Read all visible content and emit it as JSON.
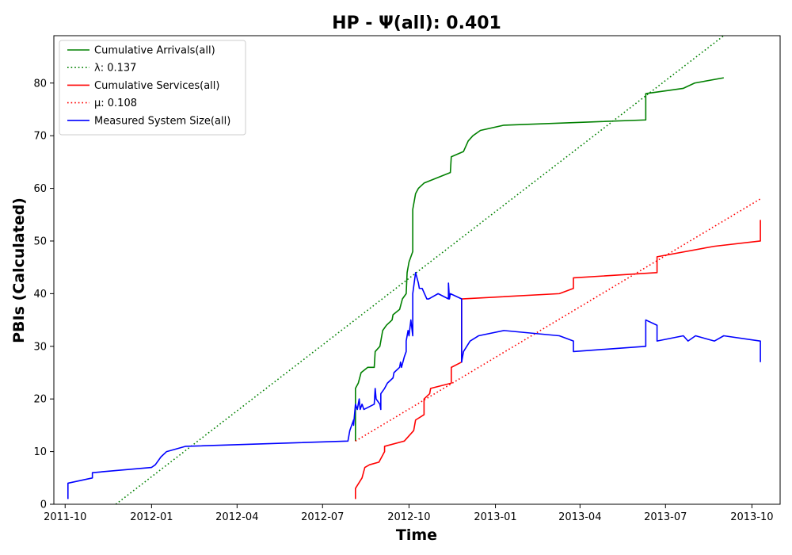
{
  "chart_data": {
    "type": "line",
    "title": "HP -  Ψ(all): 0.401",
    "xlabel": "Time",
    "ylabel": "PBIs (Calculated)",
    "xlim": [
      "2011-09-19",
      "2013-10-31"
    ],
    "ylim": [
      0,
      89
    ],
    "xticks": [
      "2011-10",
      "2012-01",
      "2012-04",
      "2012-07",
      "2012-10",
      "2013-01",
      "2013-04",
      "2013-07",
      "2013-10"
    ],
    "yticks": [
      0,
      10,
      20,
      30,
      40,
      50,
      60,
      70,
      80
    ],
    "grid": false,
    "legend_position": "top-left",
    "series": [
      {
        "name": "Cumulative Arrivals(all)",
        "color": "#008000",
        "style": "solid",
        "points": [
          [
            "2012-08-05",
            12
          ],
          [
            "2012-08-05",
            22
          ],
          [
            "2012-08-08",
            23
          ],
          [
            "2012-08-11",
            25
          ],
          [
            "2012-08-18",
            26
          ],
          [
            "2012-08-25",
            26
          ],
          [
            "2012-08-26",
            29
          ],
          [
            "2012-08-31",
            30
          ],
          [
            "2012-09-03",
            33
          ],
          [
            "2012-09-07",
            34
          ],
          [
            "2012-09-13",
            35
          ],
          [
            "2012-09-14",
            36
          ],
          [
            "2012-09-21",
            37
          ],
          [
            "2012-09-24",
            39
          ],
          [
            "2012-09-28",
            40
          ],
          [
            "2012-09-29",
            44
          ],
          [
            "2012-10-01",
            46
          ],
          [
            "2012-10-03",
            47
          ],
          [
            "2012-10-05",
            48
          ],
          [
            "2012-10-05",
            56
          ],
          [
            "2012-10-08",
            59
          ],
          [
            "2012-10-11",
            60
          ],
          [
            "2012-10-17",
            61
          ],
          [
            "2012-11-14",
            63
          ],
          [
            "2012-11-15",
            66
          ],
          [
            "2012-11-28",
            67
          ],
          [
            "2012-12-03",
            69
          ],
          [
            "2012-12-08",
            70
          ],
          [
            "2012-12-16",
            71
          ],
          [
            "2013-01-10",
            72
          ],
          [
            "2013-06-10",
            73
          ],
          [
            "2013-06-10",
            78
          ],
          [
            "2013-07-20",
            79
          ],
          [
            "2013-08-01",
            80
          ],
          [
            "2013-09-01",
            81
          ]
        ]
      },
      {
        "name": "λ: 0.137",
        "color": "#008000",
        "style": "dotted",
        "points": [
          [
            "2011-11-24",
            0
          ],
          [
            "2013-09-01",
            89
          ]
        ]
      },
      {
        "name": "Cumulative Services(all)",
        "color": "#ff0000",
        "style": "solid",
        "points": [
          [
            "2012-08-05",
            1
          ],
          [
            "2012-08-05",
            3
          ],
          [
            "2012-08-12",
            5
          ],
          [
            "2012-08-15",
            7
          ],
          [
            "2012-08-20",
            7.5
          ],
          [
            "2012-08-30",
            8
          ],
          [
            "2012-09-05",
            10
          ],
          [
            "2012-09-05",
            11
          ],
          [
            "2012-09-26",
            12
          ],
          [
            "2012-10-01",
            13
          ],
          [
            "2012-10-06",
            14
          ],
          [
            "2012-10-08",
            16
          ],
          [
            "2012-10-17",
            17
          ],
          [
            "2012-10-17",
            20
          ],
          [
            "2012-10-23",
            21
          ],
          [
            "2012-10-24",
            22
          ],
          [
            "2012-11-15",
            23
          ],
          [
            "2012-11-15",
            26
          ],
          [
            "2012-11-26",
            27
          ],
          [
            "2012-11-26",
            36
          ],
          [
            "2012-11-26",
            39
          ],
          [
            "2013-03-10",
            40
          ],
          [
            "2013-03-25",
            41
          ],
          [
            "2013-03-25",
            43
          ],
          [
            "2013-06-22",
            44
          ],
          [
            "2013-06-22",
            47
          ],
          [
            "2013-08-22",
            49
          ],
          [
            "2013-10-10",
            50
          ],
          [
            "2013-10-10",
            54
          ]
        ]
      },
      {
        "name": "μ: 0.108",
        "color": "#ff0000",
        "style": "dotted",
        "points": [
          [
            "2012-08-05",
            12
          ],
          [
            "2013-10-10",
            58
          ]
        ]
      },
      {
        "name": "Measured System Size(all)",
        "color": "#0000ff",
        "style": "solid",
        "points": [
          [
            "2011-10-04",
            1
          ],
          [
            "2011-10-04",
            4
          ],
          [
            "2011-10-30",
            5
          ],
          [
            "2011-10-30",
            6
          ],
          [
            "2012-01-01",
            7
          ],
          [
            "2012-01-05",
            7.5
          ],
          [
            "2012-01-11",
            9
          ],
          [
            "2012-01-17",
            10
          ],
          [
            "2012-02-06",
            11
          ],
          [
            "2012-07-28",
            12
          ],
          [
            "2012-07-30",
            14
          ],
          [
            "2012-08-01",
            15
          ],
          [
            "2012-08-03",
            16
          ],
          [
            "2012-08-03",
            15
          ],
          [
            "2012-08-05",
            19
          ],
          [
            "2012-08-07",
            18
          ],
          [
            "2012-08-09",
            20
          ],
          [
            "2012-08-10",
            18
          ],
          [
            "2012-08-12",
            19
          ],
          [
            "2012-08-14",
            18
          ],
          [
            "2012-08-25",
            19
          ],
          [
            "2012-08-26",
            22
          ],
          [
            "2012-08-27",
            20
          ],
          [
            "2012-08-31",
            19
          ],
          [
            "2012-09-01",
            18
          ],
          [
            "2012-09-01",
            21
          ],
          [
            "2012-09-05",
            22
          ],
          [
            "2012-09-08",
            23
          ],
          [
            "2012-09-14",
            24
          ],
          [
            "2012-09-15",
            25
          ],
          [
            "2012-09-21",
            26
          ],
          [
            "2012-09-22",
            27
          ],
          [
            "2012-09-23",
            26
          ],
          [
            "2012-09-26",
            28
          ],
          [
            "2012-09-28",
            29
          ],
          [
            "2012-09-28",
            31
          ],
          [
            "2012-09-30",
            33
          ],
          [
            "2012-10-01",
            32
          ],
          [
            "2012-10-03",
            35
          ],
          [
            "2012-10-05",
            32
          ],
          [
            "2012-10-05",
            40
          ],
          [
            "2012-10-08",
            44
          ],
          [
            "2012-10-11",
            42
          ],
          [
            "2012-10-12",
            41
          ],
          [
            "2012-10-15",
            41
          ],
          [
            "2012-10-20",
            39
          ],
          [
            "2012-10-22",
            39
          ],
          [
            "2012-11-01",
            40
          ],
          [
            "2012-11-12",
            39
          ],
          [
            "2012-11-12",
            42
          ],
          [
            "2012-11-13",
            39
          ],
          [
            "2012-11-14",
            40
          ],
          [
            "2012-11-26",
            39
          ],
          [
            "2012-11-26",
            27
          ],
          [
            "2012-11-28",
            29
          ],
          [
            "2012-12-05",
            31
          ],
          [
            "2012-12-14",
            32
          ],
          [
            "2013-01-10",
            33
          ],
          [
            "2013-03-10",
            32
          ],
          [
            "2013-03-25",
            31
          ],
          [
            "2013-03-25",
            29
          ],
          [
            "2013-06-10",
            30
          ],
          [
            "2013-06-10",
            35
          ],
          [
            "2013-06-22",
            34
          ],
          [
            "2013-06-22",
            31
          ],
          [
            "2013-07-20",
            32
          ],
          [
            "2013-07-25",
            31
          ],
          [
            "2013-08-02",
            32
          ],
          [
            "2013-08-22",
            31
          ],
          [
            "2013-09-01",
            32
          ],
          [
            "2013-10-10",
            31
          ],
          [
            "2013-10-10",
            27
          ]
        ]
      }
    ]
  }
}
